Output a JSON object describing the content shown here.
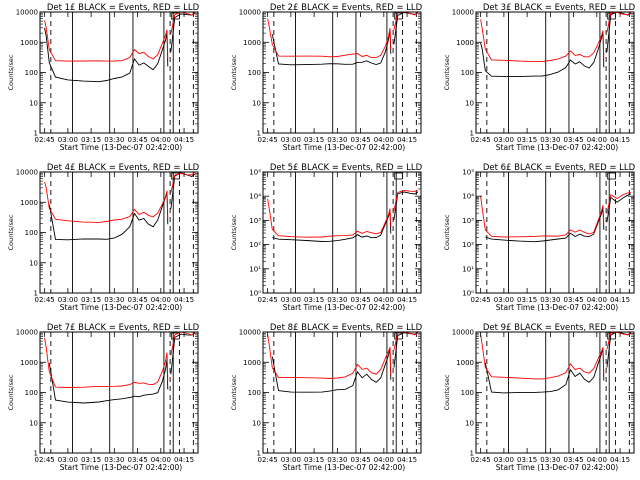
{
  "chart_data": {
    "type": "line",
    "layout": "3x3 grid of panels",
    "y_scale": "log",
    "x_label": "Start Time (13-Dec-07 02:42:00)",
    "y_label": "Counts/sec",
    "x_tick_labels": [
      "02:45",
      "03:00",
      "03:15",
      "03:30",
      "03:45",
      "04:00",
      "04:15"
    ],
    "x_tick_minutes": [
      165,
      180,
      195,
      210,
      225,
      240,
      255
    ],
    "x_range_minutes": [
      162,
      264
    ],
    "series_colors": {
      "events": "#000000",
      "lld": "#ff0000"
    },
    "markers": {
      "solid_lines_minutes": [
        183,
        207,
        222,
        242,
        248
      ],
      "dashed_lines_minutes": [
        169,
        246,
        252,
        261
      ]
    },
    "curve_time_minutes": [
      165,
      166,
      168,
      172,
      180,
      190,
      200,
      205,
      210,
      215,
      220,
      223,
      226,
      229,
      232,
      235,
      238,
      241,
      243,
      244,
      244.5,
      245,
      246.5,
      249,
      253,
      257,
      260,
      262
    ],
    "panels": [
      {
        "title": "Det 1£ BLACK = Events, RED = LLD",
        "ylim": [
          1,
          10000
        ],
        "y_tick_labels": [
          "1",
          "10",
          "100",
          "1000",
          "10000"
        ],
        "y_tick_values": [
          1,
          10,
          100,
          1000,
          10000
        ],
        "series": [
          {
            "values": [
              3000,
              1500,
              200,
              70,
              60,
              55,
              50,
              52,
              60,
              70,
              100,
              300,
              180,
              200,
              150,
              120,
              200,
              600,
              1200,
              2000,
              150,
              null,
              500,
              7000,
              9000,
              8000,
              7500,
              9000
            ]
          },
          {
            "values": [
              5000,
              3000,
              600,
              260,
              240,
              230,
              230,
              235,
              250,
              260,
              320,
              550,
              400,
              450,
              350,
              300,
              400,
              900,
              1600,
              2500,
              300,
              null,
              2000,
              8000,
              9500,
              8500,
              8000,
              9500
            ]
          }
        ]
      },
      {
        "title": "Det 2£ BLACK = Events, RED = LLD",
        "ylim": [
          1,
          10000
        ],
        "y_tick_labels": [
          "1",
          "10",
          "100",
          "1000",
          "10000"
        ],
        "y_tick_values": [
          1,
          10,
          100,
          1000,
          10000
        ],
        "series": [
          {
            "values": [
              null,
              null,
              1800,
              200,
              190,
              185,
              180,
              185,
              190,
              195,
              200,
              220,
              210,
              230,
              200,
              190,
              220,
              500,
              1200,
              2500,
              400,
              null,
              900,
              8000,
              9500,
              8500,
              8000,
              9500
            ]
          },
          {
            "values": [
              6000,
              3500,
              900,
              350,
              330,
              330,
              340,
              345,
              360,
              380,
              390,
              400,
              330,
              380,
              330,
              320,
              360,
              700,
              1500,
              3000,
              600,
              null,
              2500,
              9000,
              9800,
              9000,
              8500,
              9800
            ]
          }
        ]
      },
      {
        "title": "Det 3£ BLACK = Events, RED = LLD",
        "ylim": [
          1,
          10000
        ],
        "y_tick_labels": [
          "1",
          "10",
          "100",
          "1000",
          "10000"
        ],
        "y_tick_values": [
          1,
          10,
          100,
          1000,
          10000
        ],
        "series": [
          {
            "values": [
              900,
              600,
              120,
              80,
              75,
              70,
              72,
              75,
              90,
              110,
              150,
              250,
              180,
              220,
              170,
              150,
              220,
              600,
              1300,
              2000,
              150,
              null,
              500,
              8000,
              9500,
              8500,
              8000,
              9500
            ]
          },
          {
            "values": [
              6000,
              3000,
              600,
              250,
              240,
              235,
              240,
              245,
              255,
              270,
              330,
              500,
              380,
              420,
              340,
              320,
              420,
              900,
              1700,
              2600,
              300,
              null,
              2000,
              9000,
              9800,
              9000,
              8500,
              9800
            ]
          }
        ]
      },
      {
        "title": "Det 4£ BLACK = Events, RED = LLD",
        "ylim": [
          1,
          10000
        ],
        "y_tick_labels": [
          "1",
          "10",
          "100",
          "1000",
          "10000"
        ],
        "y_tick_values": [
          1,
          10,
          100,
          1000,
          10000
        ],
        "series": [
          {
            "values": [
              null,
              null,
              900,
              60,
              55,
              58,
              60,
              62,
              70,
              90,
              150,
              400,
              250,
              300,
              200,
              160,
              250,
              700,
              1400,
              2200,
              200,
              null,
              600,
              7000,
              9000,
              8000,
              7500,
              9000
            ]
          },
          {
            "values": [
              5000,
              3000,
              600,
              260,
              240,
              230,
              230,
              235,
              250,
              260,
              330,
              600,
              420,
              480,
              360,
              310,
              420,
              900,
              1600,
              2500,
              300,
              null,
              2000,
              8000,
              9500,
              8500,
              8000,
              9500
            ]
          }
        ]
      },
      {
        "title": "Det 5£ BLACK = Events, RED = LLD",
        "ylim": [
          1,
          100000
        ],
        "y_tick_labels": [
          "10⁰",
          "10¹",
          "10²",
          "10³",
          "10⁴",
          "10⁵"
        ],
        "y_tick_values": [
          1,
          10,
          100,
          1000,
          10000,
          100000
        ],
        "series": [
          {
            "values": [
              null,
              null,
              200,
              160,
              150,
              145,
              140,
              145,
              150,
              160,
              180,
              250,
              210,
              240,
              200,
              190,
              230,
              700,
              1500,
              2500,
              300,
              null,
              1000,
              12000,
              15000,
              14000,
              13000,
              15000
            ]
          },
          {
            "values": [
              8000,
              3000,
              400,
              230,
              220,
              215,
              210,
              215,
              220,
              230,
              260,
              380,
              300,
              340,
              290,
              270,
              320,
              900,
              1800,
              3000,
              500,
              null,
              2500,
              15000,
              18000,
              16000,
              15000,
              17000
            ]
          }
        ]
      },
      {
        "title": "Det 6£ BLACK = Events, RED = LLD",
        "ylim": [
          1,
          100000
        ],
        "y_tick_labels": [
          "10⁰",
          "10¹",
          "10²",
          "10³",
          "10⁴",
          "10⁵"
        ],
        "y_tick_values": [
          1,
          10,
          100,
          1000,
          10000,
          100000
        ],
        "series": [
          {
            "values": [
              null,
              null,
              200,
              160,
              150,
              145,
              140,
              145,
              150,
              160,
              180,
              300,
              230,
              280,
              220,
              200,
              260,
              900,
              2000,
              3500,
              400,
              null,
              800,
              9000,
              6000,
              9000,
              11000,
              12000
            ]
          },
          {
            "values": [
              10000,
              3000,
              400,
              230,
              220,
              215,
              210,
              215,
              220,
              230,
              270,
              420,
              320,
              380,
              310,
              280,
              340,
              1100,
              2400,
              4000,
              600,
              null,
              2000,
              12000,
              8000,
              11000,
              13000,
              14000
            ]
          }
        ]
      },
      {
        "title": "Det 7£ BLACK = Events, RED = LLD",
        "ylim": [
          1,
          10000
        ],
        "y_tick_labels": [
          "1",
          "10",
          "100",
          "1000",
          "10000"
        ],
        "y_tick_values": [
          1,
          10,
          100,
          1000,
          10000
        ],
        "series": [
          {
            "values": [
              null,
              null,
              900,
              55,
              50,
              48,
              50,
              52,
              55,
              60,
              70,
              80,
              75,
              80,
              80,
              85,
              100,
              250,
              600,
              1200,
              120,
              null,
              400,
              7000,
              9000,
              8000,
              7500,
              9000
            ]
          },
          {
            "values": [
              6000,
              3000,
              500,
              160,
              150,
              145,
              150,
              155,
              165,
              175,
              190,
              210,
              190,
              200,
              190,
              195,
              230,
              500,
              1000,
              2000,
              250,
              null,
              1800,
              8000,
              9500,
              8500,
              8000,
              9500
            ]
          }
        ]
      },
      {
        "title": "Det 8£ BLACK = Events, RED = LLD",
        "ylim": [
          1,
          10000
        ],
        "y_tick_labels": [
          "1",
          "10",
          "100",
          "1000",
          "10000"
        ],
        "y_tick_values": [
          1,
          10,
          100,
          1000,
          10000
        ],
        "series": [
          {
            "values": [
              null,
              null,
              1500,
              120,
              110,
              105,
              100,
              105,
              120,
              130,
              180,
              500,
              300,
              380,
              260,
              220,
              320,
              900,
              1700,
              2800,
              250,
              null,
              700,
              8000,
              9500,
              8500,
              8000,
              9500
            ]
          },
          {
            "values": [
              8000,
              4000,
              700,
              320,
              300,
              290,
              290,
              300,
              320,
              340,
              420,
              800,
              560,
              650,
              480,
              420,
              560,
              1300,
              2200,
              3200,
              400,
              null,
              2500,
              9000,
              9800,
              9000,
              8500,
              9800
            ]
          }
        ]
      },
      {
        "title": "Det 9£ BLACK = Events, RED = LLD",
        "ylim": [
          1,
          10000
        ],
        "y_tick_labels": [
          "1",
          "10",
          "100",
          "1000",
          "10000"
        ],
        "y_tick_values": [
          1,
          10,
          100,
          1000,
          10000
        ],
        "series": [
          {
            "values": [
              null,
              null,
              1000,
              110,
              100,
              98,
              95,
              100,
              110,
              130,
              190,
              550,
              320,
              420,
              280,
              230,
              330,
              950,
              1800,
              2800,
              250,
              null,
              700,
              8000,
              9500,
              8500,
              8000,
              9500
            ]
          },
          {
            "values": [
              9000,
              4000,
              700,
              320,
              300,
              290,
              290,
              300,
              320,
              340,
              430,
              850,
              580,
              680,
              500,
              430,
              580,
              1300,
              2300,
              3300,
              400,
              null,
              2500,
              9000,
              9800,
              9000,
              8500,
              9800
            ]
          }
        ]
      }
    ]
  }
}
